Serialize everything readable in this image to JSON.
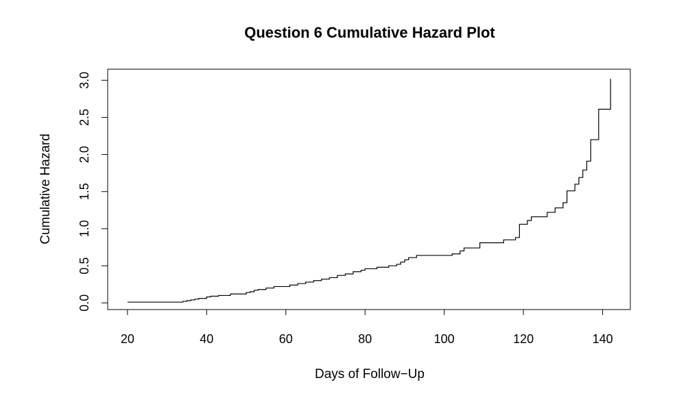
{
  "chart_data": {
    "type": "line",
    "step": true,
    "title": "Question 6 Cumulative Hazard Plot",
    "xlabel": "Days of Follow−Up",
    "ylabel": "Cumulative Hazard",
    "xlim": [
      15,
      147
    ],
    "ylim": [
      -0.09,
      3.15
    ],
    "xticks": [
      20,
      40,
      60,
      80,
      100,
      120,
      140
    ],
    "xtick_labels": [
      "20",
      "40",
      "60",
      "80",
      "100",
      "120",
      "140"
    ],
    "yticks": [
      0.0,
      0.5,
      1.0,
      1.5,
      2.0,
      2.5,
      3.0
    ],
    "ytick_labels": [
      "0.0",
      "0.5",
      "1.0",
      "1.5",
      "2.0",
      "2.5",
      "3.0"
    ],
    "grid": false,
    "line_color": "#000000",
    "points": [
      [
        20,
        0.01
      ],
      [
        33,
        0.01
      ],
      [
        34,
        0.02
      ],
      [
        35,
        0.03
      ],
      [
        36,
        0.04
      ],
      [
        37,
        0.05
      ],
      [
        38,
        0.06
      ],
      [
        40,
        0.08
      ],
      [
        41,
        0.09
      ],
      [
        43,
        0.1
      ],
      [
        46,
        0.12
      ],
      [
        50,
        0.14
      ],
      [
        51,
        0.15
      ],
      [
        52,
        0.17
      ],
      [
        53,
        0.18
      ],
      [
        55,
        0.2
      ],
      [
        57,
        0.22
      ],
      [
        61,
        0.24
      ],
      [
        63,
        0.26
      ],
      [
        65,
        0.28
      ],
      [
        67,
        0.3
      ],
      [
        69,
        0.32
      ],
      [
        71,
        0.34
      ],
      [
        73,
        0.37
      ],
      [
        75,
        0.39
      ],
      [
        77,
        0.42
      ],
      [
        79,
        0.44
      ],
      [
        80,
        0.46
      ],
      [
        83,
        0.48
      ],
      [
        86,
        0.5
      ],
      [
        88,
        0.52
      ],
      [
        89,
        0.55
      ],
      [
        90,
        0.58
      ],
      [
        91,
        0.61
      ],
      [
        93,
        0.64
      ],
      [
        102,
        0.66
      ],
      [
        104,
        0.7
      ],
      [
        105,
        0.74
      ],
      [
        109,
        0.81
      ],
      [
        115,
        0.85
      ],
      [
        118,
        0.88
      ],
      [
        119,
        1.06
      ],
      [
        121,
        1.11
      ],
      [
        122,
        1.16
      ],
      [
        126,
        1.22
      ],
      [
        128,
        1.28
      ],
      [
        130,
        1.35
      ],
      [
        131,
        1.51
      ],
      [
        133,
        1.6
      ],
      [
        134,
        1.69
      ],
      [
        135,
        1.79
      ],
      [
        136,
        1.91
      ],
      [
        137,
        2.2
      ],
      [
        139,
        2.61
      ],
      [
        142,
        3.02
      ]
    ]
  }
}
